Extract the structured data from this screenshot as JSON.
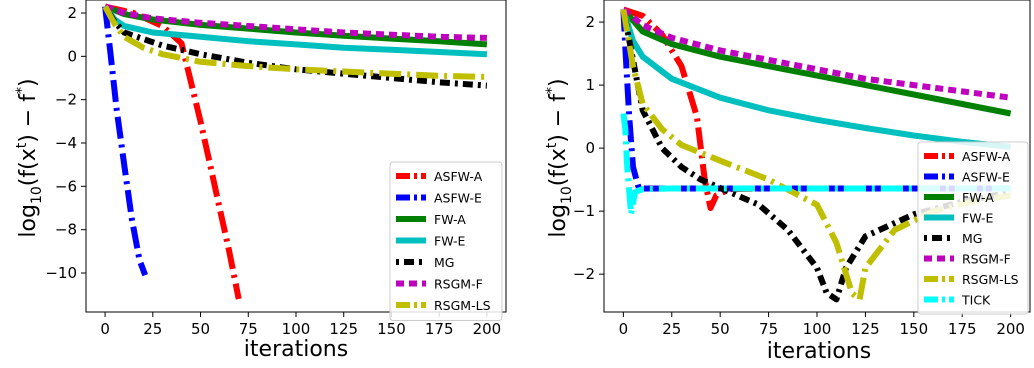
{
  "chart_data": [
    {
      "type": "line",
      "xlabel": "iterations",
      "ylabel": [
        "log",
        "10",
        "(f(x",
        "t",
        ") − f",
        "*",
        ")"
      ],
      "xlim": [
        -10,
        210
      ],
      "ylim": [
        -11.8,
        2.6
      ],
      "xticks": [
        0,
        25,
        50,
        75,
        100,
        125,
        150,
        175,
        200
      ],
      "yticks": [
        2,
        0,
        -2,
        -4,
        -6,
        -8,
        -10
      ],
      "ytick_labels": [
        "2",
        "0",
        "−2",
        "−4",
        "−6",
        "−8",
        "−10"
      ],
      "legend_position": "lower right",
      "series": [
        {
          "name": "ASFW-A",
          "color": "#ff0000",
          "dash": "22,6,3,6",
          "x": [
            0,
            15,
            30,
            40,
            45,
            50,
            55,
            60,
            65,
            70
          ],
          "y": [
            2.3,
            2.0,
            1.4,
            0.6,
            -1.2,
            -3.0,
            -5.0,
            -7.0,
            -9.0,
            -11.2
          ]
        },
        {
          "name": "ASFW-E",
          "color": "#0000ff",
          "dash": "22,6,3,6",
          "x": [
            0,
            3,
            6,
            10,
            14,
            18,
            21
          ],
          "y": [
            2.3,
            0.0,
            -2.4,
            -5.0,
            -7.5,
            -9.4,
            -10.1
          ]
        },
        {
          "name": "FW-A",
          "color": "#008000",
          "dash": "",
          "x": [
            0,
            10,
            25,
            50,
            75,
            100,
            125,
            150,
            175,
            200
          ],
          "y": [
            2.3,
            1.95,
            1.7,
            1.45,
            1.28,
            1.1,
            0.95,
            0.82,
            0.7,
            0.55
          ]
        },
        {
          "name": "FW-E",
          "color": "#00bfbf",
          "dash": "",
          "x": [
            0,
            5,
            10,
            25,
            50,
            75,
            100,
            125,
            150,
            175,
            200
          ],
          "y": [
            2.3,
            1.7,
            1.4,
            1.1,
            0.9,
            0.7,
            0.55,
            0.4,
            0.3,
            0.2,
            0.1
          ]
        },
        {
          "name": "MG",
          "color": "#000000",
          "dash": "3,5,10,5",
          "x": [
            0,
            5,
            10,
            20,
            30,
            50,
            75,
            100,
            125,
            150,
            175,
            200
          ],
          "y": [
            2.3,
            1.6,
            1.1,
            0.8,
            0.5,
            0.1,
            -0.3,
            -0.6,
            -0.8,
            -1.0,
            -1.2,
            -1.35
          ]
        },
        {
          "name": "RSGM-F",
          "color": "#bf00bf",
          "dash": "8,5",
          "x": [
            0,
            10,
            25,
            50,
            75,
            100,
            125,
            150,
            175,
            200
          ],
          "y": [
            2.3,
            2.0,
            1.75,
            1.55,
            1.4,
            1.25,
            1.1,
            1.0,
            0.9,
            0.85
          ]
        },
        {
          "name": "RSGM-LS",
          "color": "#bfbf00",
          "dash": "22,6,3,6",
          "x": [
            0,
            5,
            10,
            20,
            30,
            50,
            75,
            100,
            125,
            150,
            175,
            200
          ],
          "y": [
            2.3,
            1.5,
            0.9,
            0.4,
            0.1,
            -0.25,
            -0.45,
            -0.6,
            -0.7,
            -0.8,
            -0.9,
            -0.95
          ]
        }
      ]
    },
    {
      "type": "line",
      "xlabel": "iterations",
      "ylabel": [
        "log",
        "10",
        "(f(x",
        "t",
        ") − f",
        "*",
        ")"
      ],
      "xlim": [
        -10,
        210
      ],
      "ylim": [
        -2.6,
        2.35
      ],
      "xticks": [
        0,
        25,
        50,
        75,
        100,
        125,
        150,
        175,
        200
      ],
      "yticks": [
        2,
        1,
        0,
        -1,
        -2
      ],
      "ytick_labels": [
        "2",
        "1",
        "0",
        "−1",
        "−2"
      ],
      "legend_position": "lower right",
      "series": [
        {
          "name": "ASFW-A",
          "color": "#ff0000",
          "dash": "22,6,3,6",
          "x": [
            0,
            10,
            20,
            30,
            38,
            42,
            45,
            48,
            55,
            75,
            100,
            150,
            200
          ],
          "y": [
            2.2,
            2.1,
            1.8,
            1.3,
            0.5,
            -0.5,
            -0.95,
            -0.75,
            -0.65,
            -0.64,
            -0.64,
            -0.64,
            -0.64
          ]
        },
        {
          "name": "ASFW-E",
          "color": "#0000ff",
          "dash": "22,6,3,6",
          "x": [
            0,
            1,
            3,
            5,
            8,
            15,
            25,
            50,
            100,
            150,
            200
          ],
          "y": [
            2.2,
            1.6,
            0.5,
            -0.3,
            -0.64,
            -0.64,
            -0.64,
            -0.64,
            -0.64,
            -0.64,
            -0.64
          ]
        },
        {
          "name": "FW-A",
          "color": "#008000",
          "dash": "",
          "x": [
            0,
            10,
            25,
            50,
            75,
            100,
            125,
            150,
            175,
            200
          ],
          "y": [
            2.2,
            1.85,
            1.65,
            1.45,
            1.3,
            1.15,
            1.0,
            0.85,
            0.7,
            0.55
          ]
        },
        {
          "name": "FW-E",
          "color": "#00bfbf",
          "dash": "",
          "x": [
            0,
            5,
            10,
            25,
            50,
            75,
            100,
            125,
            150,
            175,
            200
          ],
          "y": [
            2.2,
            1.7,
            1.45,
            1.1,
            0.8,
            0.6,
            0.45,
            0.32,
            0.2,
            0.1,
            0.02
          ]
        },
        {
          "name": "MG",
          "color": "#000000",
          "dash": "3,5,10,5",
          "x": [
            0,
            5,
            10,
            20,
            30,
            40,
            55,
            70,
            85,
            100,
            105,
            110,
            115,
            125,
            150,
            175,
            200
          ],
          "y": [
            2.2,
            1.4,
            0.6,
            0.0,
            -0.3,
            -0.5,
            -0.7,
            -0.9,
            -1.3,
            -1.9,
            -2.3,
            -2.4,
            -1.9,
            -1.4,
            -1.05,
            -0.85,
            -0.7
          ]
        },
        {
          "name": "RSGM-F",
          "color": "#bf00bf",
          "dash": "8,5",
          "x": [
            0,
            10,
            25,
            50,
            75,
            100,
            125,
            150,
            175,
            200
          ],
          "y": [
            2.2,
            1.95,
            1.75,
            1.55,
            1.4,
            1.25,
            1.1,
            1.0,
            0.9,
            0.8
          ]
        },
        {
          "name": "RSGM-LS",
          "color": "#bfbf00",
          "dash": "22,6,3,6",
          "x": [
            0,
            5,
            10,
            20,
            30,
            50,
            75,
            100,
            110,
            118,
            122,
            125,
            140,
            160,
            180,
            200
          ],
          "y": [
            2.2,
            1.3,
            0.7,
            0.3,
            0.05,
            -0.2,
            -0.5,
            -0.9,
            -1.5,
            -2.3,
            -2.4,
            -1.9,
            -1.3,
            -1.0,
            -0.85,
            -0.75
          ]
        },
        {
          "name": "TICK",
          "color": "#00ffff",
          "dash": "22,6,3,6",
          "x": [
            0,
            1,
            2,
            4,
            6,
            10,
            25,
            50,
            100,
            150,
            200
          ],
          "y": [
            0.55,
            0.3,
            -0.3,
            -1.05,
            -0.7,
            -0.65,
            -0.64,
            -0.64,
            -0.64,
            -0.64,
            -0.64
          ]
        }
      ]
    }
  ]
}
